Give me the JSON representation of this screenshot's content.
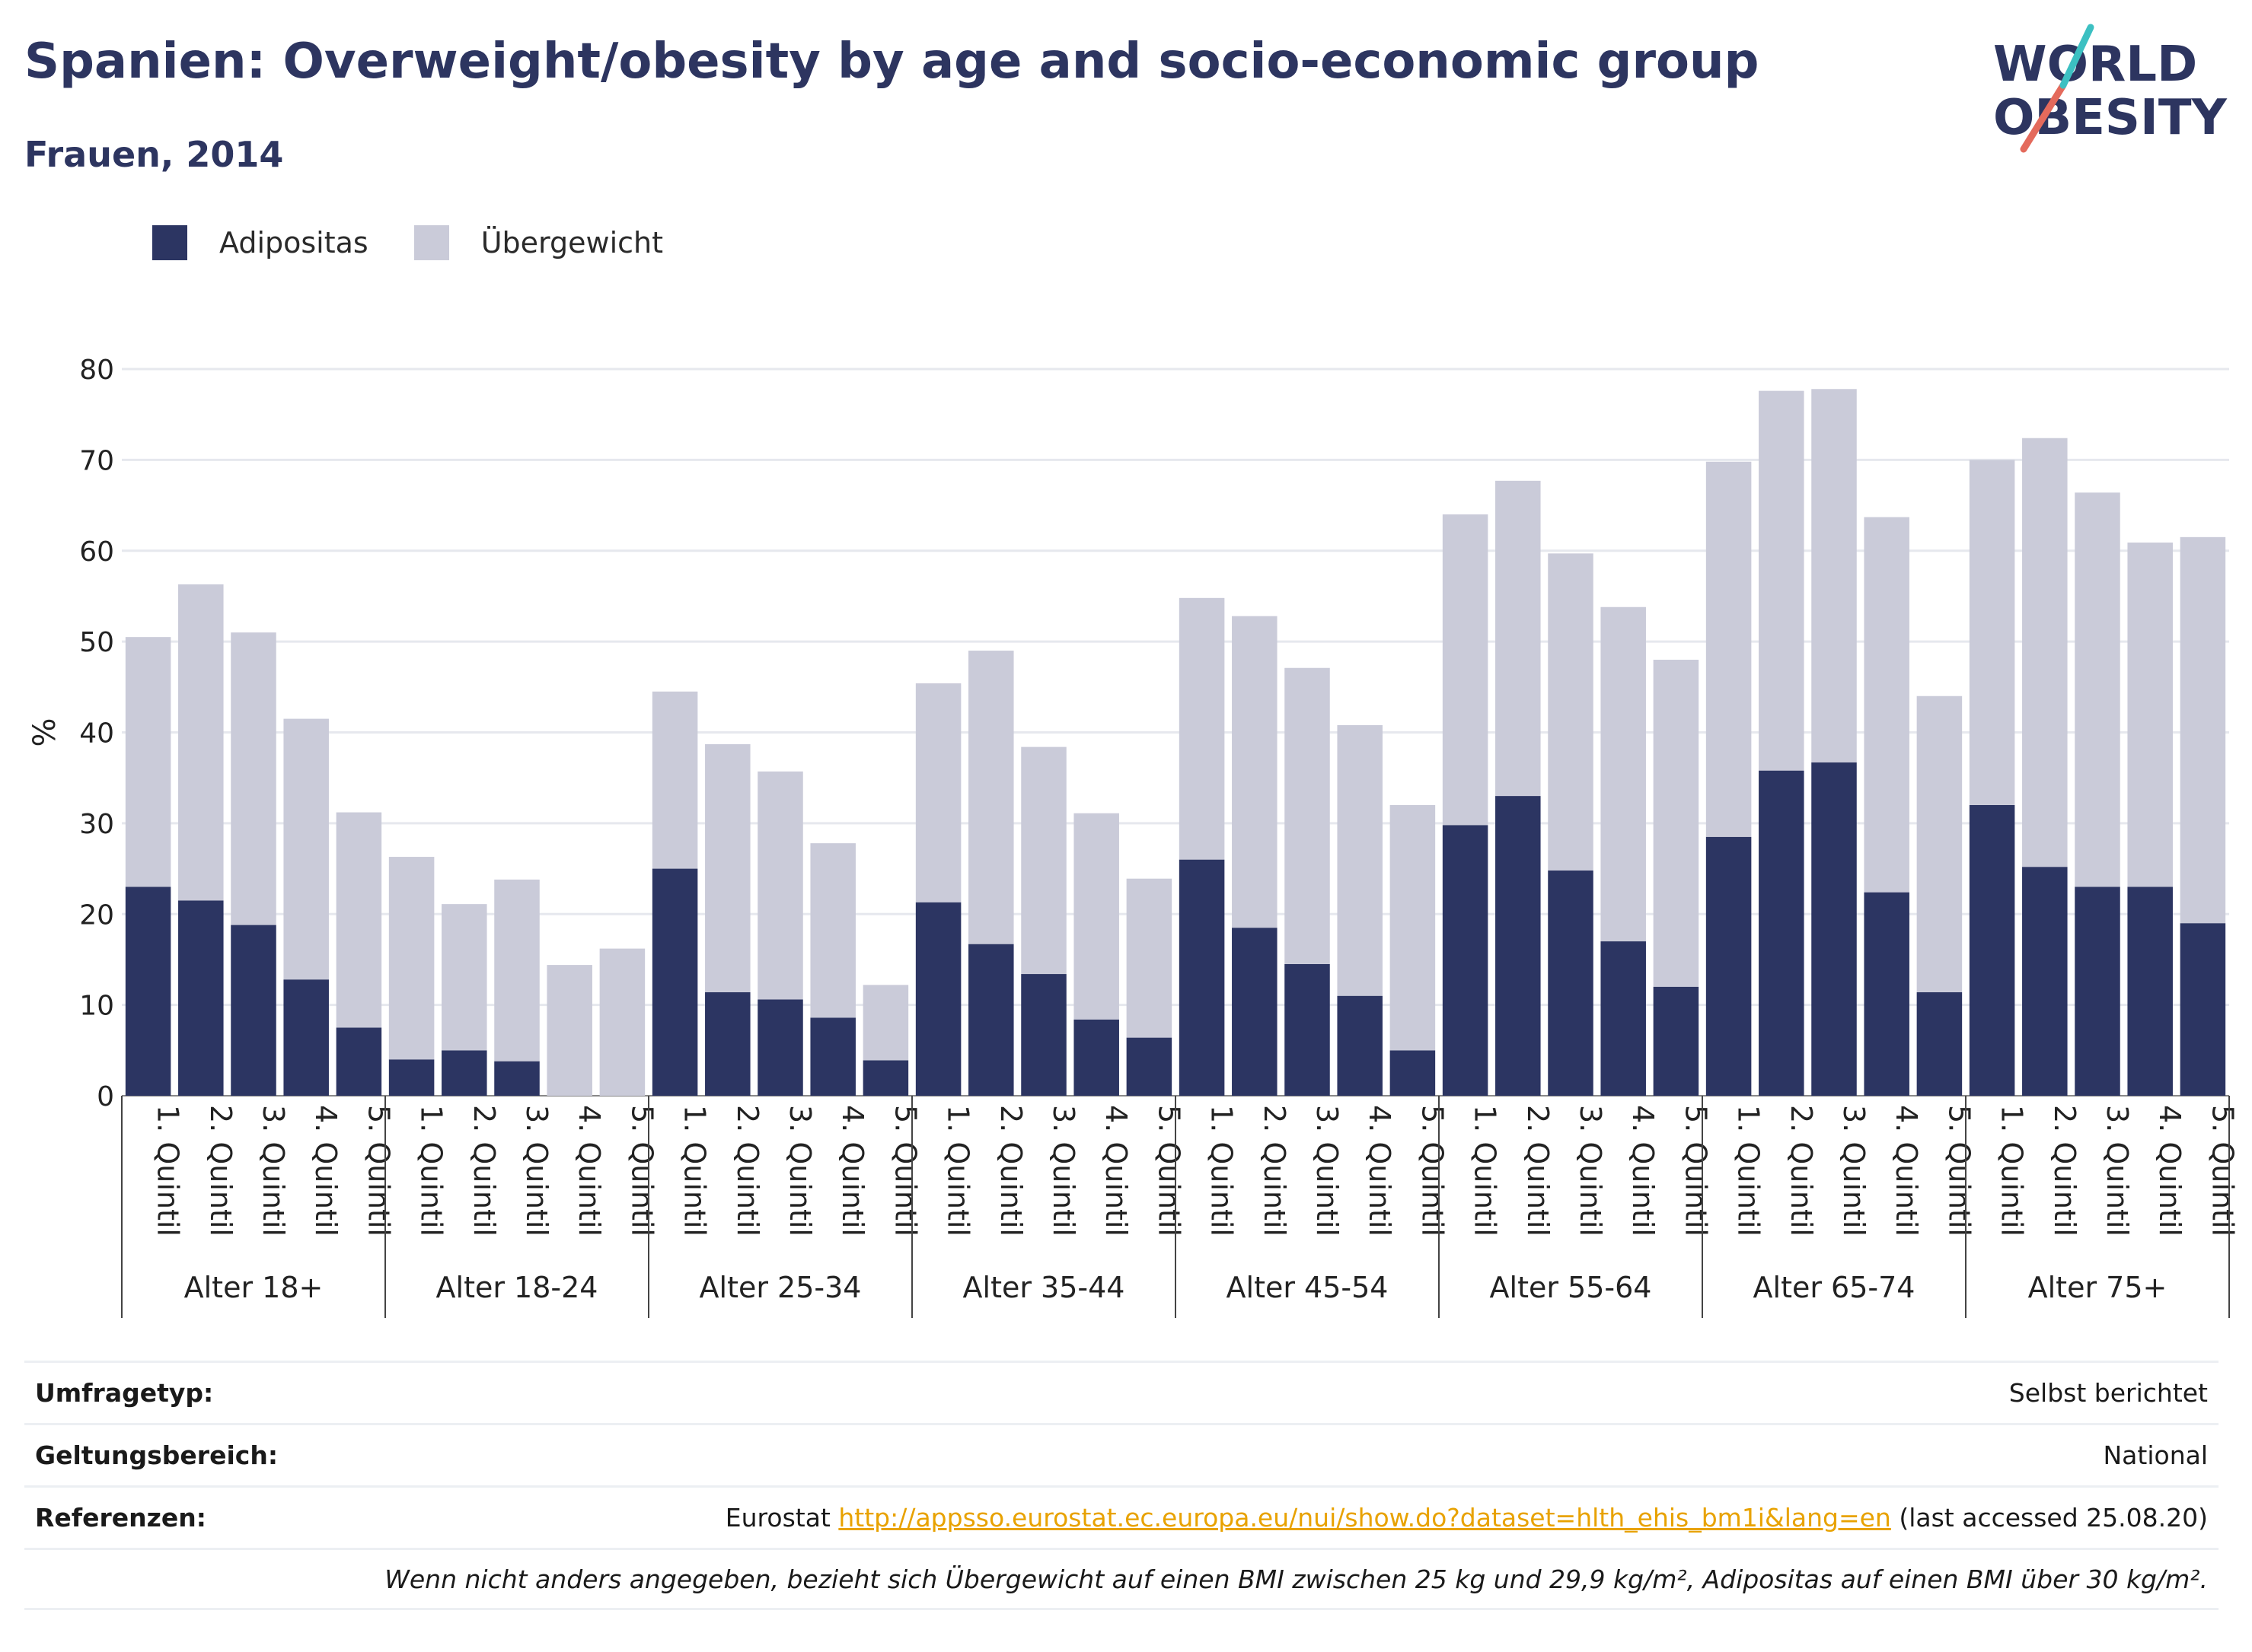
{
  "header": {
    "title": "Spanien: Overweight/obesity by age and socio-economic group",
    "subtitle": "Frauen, 2014"
  },
  "logo": {
    "line1": "WORLD",
    "line2": "OBESITY"
  },
  "colors": {
    "obesity": "#2c3562",
    "overweight": "#cacbd9",
    "title": "#2d3560",
    "link": "#e8a200",
    "logo_teal": "#3cc0c2",
    "logo_coral": "#e46a5c"
  },
  "chart_data": {
    "type": "bar",
    "stacked": true,
    "ylabel": "%",
    "ylim": [
      0,
      80
    ],
    "yticks": [
      0,
      10,
      20,
      30,
      40,
      50,
      60,
      70,
      80
    ],
    "grid": true,
    "legend_position": "top-left",
    "groups": [
      "Alter 18+",
      "Alter 18-24",
      "Alter 25-34",
      "Alter 35-44",
      "Alter 45-54",
      "Alter 55-64",
      "Alter 65-74",
      "Alter 75+"
    ],
    "categories": [
      "1. Quintil",
      "2. Quintil",
      "3. Quintil",
      "4. Quintil",
      "5. Quintil"
    ],
    "series": [
      {
        "name": "Adipositas",
        "values": [
          [
            23,
            21.5,
            18.8,
            12.8,
            7.5
          ],
          [
            4,
            5,
            3.8,
            0,
            0
          ],
          [
            25,
            11.4,
            10.6,
            8.6,
            3.9
          ],
          [
            21.3,
            16.7,
            13.4,
            8.4,
            6.4
          ],
          [
            26,
            18.5,
            14.5,
            11,
            5
          ],
          [
            29.8,
            33,
            24.8,
            17,
            12
          ],
          [
            28.5,
            35.8,
            36.7,
            22.4,
            11.4
          ],
          [
            32,
            25.2,
            23,
            23,
            19
          ]
        ]
      },
      {
        "name": "Übergewicht",
        "values": [
          [
            27.5,
            34.8,
            32.2,
            28.7,
            23.7
          ],
          [
            22.3,
            16.1,
            20,
            14.4,
            16.2
          ],
          [
            19.5,
            27.3,
            25.1,
            19.2,
            8.3
          ],
          [
            24.1,
            32.3,
            25,
            22.7,
            17.5
          ],
          [
            28.8,
            34.3,
            32.6,
            29.8,
            27
          ],
          [
            34.2,
            34.7,
            34.9,
            36.8,
            36
          ],
          [
            41.3,
            41.8,
            41.1,
            41.3,
            32.6
          ],
          [
            38,
            47.2,
            43.4,
            37.9,
            42.5
          ]
        ]
      }
    ]
  },
  "meta": {
    "survey_type_label": "Umfragetyp:",
    "survey_type_value": "Selbst berichtet",
    "scope_label": "Geltungsbereich:",
    "scope_value": "National",
    "references_label": "Referenzen:",
    "references_prefix": "Eurostat",
    "references_url": "http://appsso.eurostat.ec.europa.eu/nui/show.do?dataset=hlth_ehis_bm1i&lang=en",
    "references_suffix": "(last accessed 25.08.20)",
    "note": "Wenn nicht anders angegeben, bezieht sich Übergewicht auf einen BMI zwischen 25 kg und 29,9 kg/m², Adipositas auf einen BMI über 30 kg/m²."
  }
}
